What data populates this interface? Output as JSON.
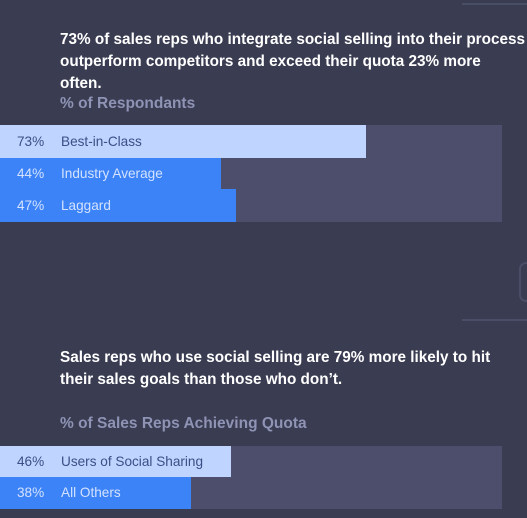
{
  "colors": {
    "background": "#3a3c52",
    "track": "#4c4e6c",
    "highlight_bar": "#bfd4ff",
    "primary_bar": "#3b83f6",
    "highlight_text": "#3c4f86",
    "primary_text": "#d4e2ff",
    "subtitle": "#8f93b4",
    "headline": "#ffffff"
  },
  "chart_data": [
    {
      "type": "bar",
      "orientation": "horizontal",
      "title": "73% of sales reps who integrate social selling into their process outperform competitors and exceed their quota 23% more often.",
      "subtitle": "% of Respondants",
      "categories": [
        "Best-in-Class",
        "Industry Average",
        "Laggard"
      ],
      "values": [
        73,
        44,
        47
      ],
      "value_labels": [
        "73%",
        "44%",
        "47%"
      ],
      "unit": "%",
      "xlim": [
        0,
        100
      ],
      "highlighted": "Best-in-Class"
    },
    {
      "type": "bar",
      "orientation": "horizontal",
      "title": "Sales reps who use social selling are 79% more likely to hit their sales goals than those who don’t.",
      "subtitle": "% of Sales Reps Achieving Quota",
      "categories": [
        "Users of Social Sharing",
        "All Others"
      ],
      "values": [
        46,
        38
      ],
      "value_labels": [
        "46%",
        "38%"
      ],
      "unit": "%",
      "xlim": [
        0,
        100
      ],
      "highlighted": "Users of Social Sharing"
    }
  ]
}
